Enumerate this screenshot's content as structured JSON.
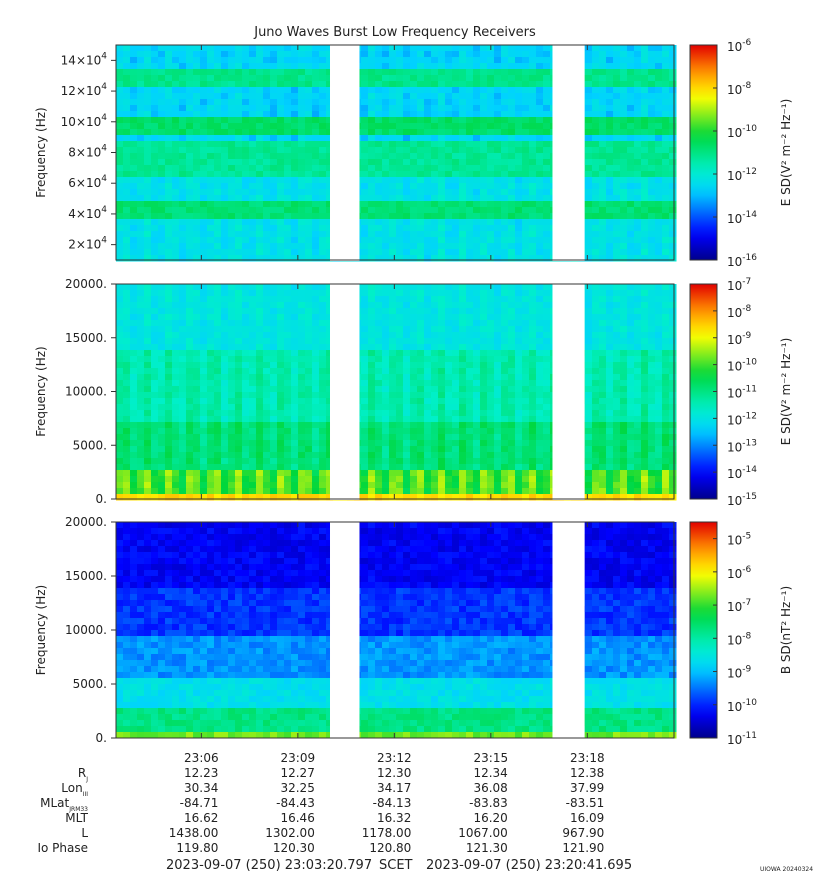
{
  "chart_data": {
    "type": "heatmap",
    "title": "Juno Waves Burst Low Frequency Receivers",
    "panels": [
      {
        "ylabel": "Frequency (Hz)",
        "yticks": [
          {
            "value": 20000,
            "base": "2×10",
            "exp": "4"
          },
          {
            "value": 40000,
            "base": "4×10",
            "exp": "4"
          },
          {
            "value": 60000,
            "base": "6×10",
            "exp": "4"
          },
          {
            "value": 80000,
            "base": "8×10",
            "exp": "4"
          },
          {
            "value": 100000,
            "base": "10×10",
            "exp": "4"
          },
          {
            "value": 120000,
            "base": "12×10",
            "exp": "4"
          },
          {
            "value": 140000,
            "base": "14×10",
            "exp": "4"
          }
        ],
        "ylim": [
          10000,
          150000
        ],
        "colorbar": {
          "label": "E SD(V² m⁻² Hz⁻¹)",
          "labels": [
            {
              "value": -6,
              "base": "10",
              "exp": "-6"
            },
            {
              "value": -8,
              "base": "10",
              "exp": "-8"
            },
            {
              "value": -10,
              "base": "10",
              "exp": "-10"
            },
            {
              "value": -12,
              "base": "10",
              "exp": "-12"
            },
            {
              "value": -14,
              "base": "10",
              "exp": "-14"
            },
            {
              "value": -16,
              "base": "10",
              "exp": "-16"
            }
          ],
          "log_range": [
            -16,
            -6
          ]
        }
      },
      {
        "ylabel": "Frequency (Hz)",
        "yticks": [
          {
            "value": 0,
            "base": "0.",
            "exp": ""
          },
          {
            "value": 5000,
            "base": "5000.",
            "exp": ""
          },
          {
            "value": 10000,
            "base": "10000.",
            "exp": ""
          },
          {
            "value": 15000,
            "base": "15000.",
            "exp": ""
          },
          {
            "value": 20000,
            "base": "20000.",
            "exp": ""
          }
        ],
        "ylim": [
          0,
          20000
        ],
        "colorbar": {
          "label": "E SD(V² m⁻² Hz⁻¹)",
          "labels": [
            {
              "value": -7,
              "base": "10",
              "exp": "-7"
            },
            {
              "value": -8,
              "base": "10",
              "exp": "-8"
            },
            {
              "value": -9,
              "base": "10",
              "exp": "-9"
            },
            {
              "value": -10,
              "base": "10",
              "exp": "-10"
            },
            {
              "value": -11,
              "base": "10",
              "exp": "-11"
            },
            {
              "value": -12,
              "base": "10",
              "exp": "-12"
            },
            {
              "value": -13,
              "base": "10",
              "exp": "-13"
            },
            {
              "value": -14,
              "base": "10",
              "exp": "-14"
            },
            {
              "value": -15,
              "base": "10",
              "exp": "-15"
            }
          ],
          "log_range": [
            -15,
            -7
          ]
        }
      },
      {
        "ylabel": "Frequency (Hz)",
        "yticks": [
          {
            "value": 0,
            "base": "0.",
            "exp": ""
          },
          {
            "value": 5000,
            "base": "5000.",
            "exp": ""
          },
          {
            "value": 10000,
            "base": "10000.",
            "exp": ""
          },
          {
            "value": 15000,
            "base": "15000.",
            "exp": ""
          },
          {
            "value": 20000,
            "base": "20000.",
            "exp": ""
          }
        ],
        "ylim": [
          0,
          20000
        ],
        "colorbar": {
          "label": "B SD(nT² Hz⁻¹)",
          "labels": [
            {
              "value": -5,
              "base": "10",
              "exp": "-5"
            },
            {
              "value": -6,
              "base": "10",
              "exp": "-6"
            },
            {
              "value": -7,
              "base": "10",
              "exp": "-7"
            },
            {
              "value": -8,
              "base": "10",
              "exp": "-8"
            },
            {
              "value": -9,
              "base": "10",
              "exp": "-9"
            },
            {
              "value": -10,
              "base": "10",
              "exp": "-10"
            },
            {
              "value": -11,
              "base": "10",
              "exp": "-11"
            }
          ],
          "log_range": [
            -11,
            -4.5
          ]
        }
      }
    ],
    "xlim": [
      "23:03:20.797",
      "23:20:41.695"
    ],
    "data_gaps": [
      [
        "23:10:00",
        "23:10:55"
      ],
      [
        "23:16:55",
        "23:17:55"
      ]
    ],
    "x_ticks": [
      "23:06",
      "23:09",
      "23:12",
      "23:15",
      "23:18"
    ],
    "ephemeris_rows": [
      {
        "label": "R",
        "sub": "J",
        "values": [
          "12.23",
          "12.27",
          "12.30",
          "12.34",
          "12.38"
        ]
      },
      {
        "label": "Lon",
        "sub": "III",
        "values": [
          "30.34",
          "32.25",
          "34.17",
          "36.08",
          "37.99"
        ]
      },
      {
        "label": "MLat",
        "sub": "JRM33",
        "values": [
          "-84.71",
          "-84.43",
          "-84.13",
          "-83.83",
          "-83.51"
        ]
      },
      {
        "label": "MLT",
        "sub": "",
        "values": [
          "16.62",
          "16.46",
          "16.32",
          "16.20",
          "16.09"
        ]
      },
      {
        "label": "L",
        "sub": "",
        "values": [
          "1438.00",
          "1302.00",
          "1178.00",
          "1067.00",
          "967.90"
        ]
      },
      {
        "label": "Io Phase",
        "sub": "",
        "values": [
          "119.80",
          "120.30",
          "120.80",
          "121.30",
          "121.90"
        ]
      }
    ],
    "footer": {
      "start": "2023-09-07 (250) 23:03:20.797",
      "middle": "SCET",
      "end": "2023-09-07 (250) 23:20:41.695",
      "credit": "UIOWA 20240324"
    },
    "grid": false
  }
}
